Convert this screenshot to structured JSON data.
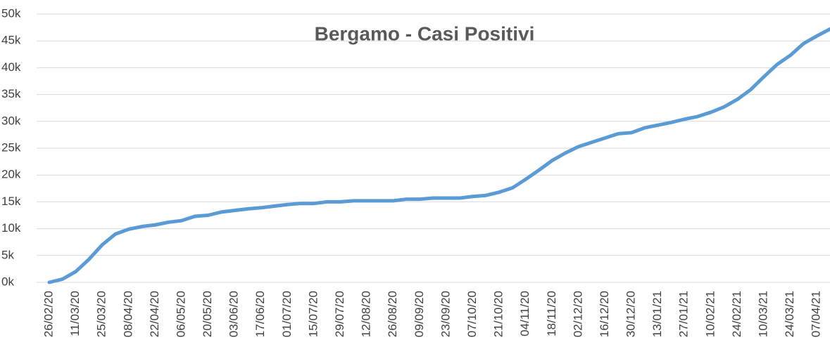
{
  "chart_data": {
    "type": "line",
    "title": "Bergamo - Casi Positivi",
    "categories": [
      "26/02/20",
      null,
      "11/03/20",
      null,
      "25/03/20",
      null,
      "08/04/20",
      null,
      "22/04/20",
      null,
      "06/05/20",
      null,
      "20/05/20",
      null,
      "03/06/20",
      null,
      "17/06/20",
      null,
      "01/07/20",
      null,
      "15/07/20",
      null,
      "29/07/20",
      null,
      "12/08/20",
      null,
      "26/08/20",
      null,
      "09/09/20",
      null,
      "23/09/20",
      null,
      "07/10/20",
      null,
      "21/10/20",
      null,
      "04/11/20",
      null,
      "18/11/20",
      null,
      "02/12/20",
      null,
      "16/12/20",
      null,
      "30/12/20",
      null,
      "13/01/21",
      null,
      "27/01/21",
      null,
      "10/02/21",
      null,
      "24/02/21",
      null,
      "10/03/21",
      null,
      "24/03/21",
      null,
      "07/04/21",
      null
    ],
    "series": [
      {
        "name": "Casi Positivi",
        "color": "#5b9bd5",
        "values": [
          0,
          600,
          2000,
          4300,
          7000,
          9000,
          9900,
          10400,
          10700,
          11200,
          11500,
          12300,
          12500,
          13100,
          13400,
          13700,
          13900,
          14200,
          14500,
          14700,
          14700,
          15000,
          15000,
          15200,
          15200,
          15200,
          15200,
          15500,
          15500,
          15700,
          15700,
          15700,
          16000,
          16200,
          16800,
          17600,
          19200,
          20900,
          22700,
          24100,
          25300,
          26100,
          26900,
          27700,
          27900,
          28800,
          29300,
          29800,
          30400,
          30900,
          31700,
          32700,
          34100,
          35900,
          38300,
          40600,
          42300,
          44500,
          45900,
          47200
        ]
      }
    ],
    "ylim": [
      0,
      50000
    ],
    "yticks": [
      {
        "value": 0,
        "label": "0k"
      },
      {
        "value": 5000,
        "label": "5k"
      },
      {
        "value": 10000,
        "label": "10k"
      },
      {
        "value": 15000,
        "label": "15k"
      },
      {
        "value": 20000,
        "label": "20k"
      },
      {
        "value": 25000,
        "label": "25k"
      },
      {
        "value": 30000,
        "label": "30k"
      },
      {
        "value": 35000,
        "label": "35k"
      },
      {
        "value": 40000,
        "label": "40k"
      },
      {
        "value": 45000,
        "label": "45k"
      },
      {
        "value": 50000,
        "label": "50k"
      }
    ],
    "grid": true
  }
}
